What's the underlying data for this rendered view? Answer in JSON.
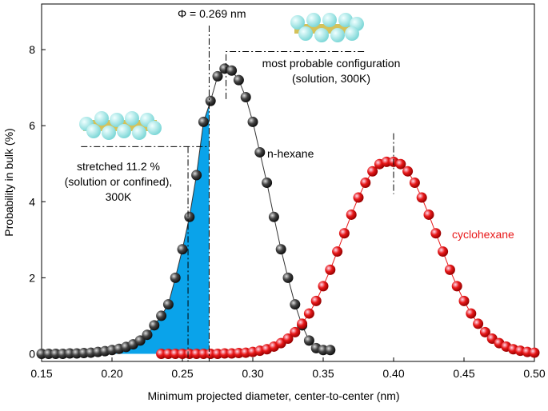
{
  "chart_data": {
    "type": "scatter-line",
    "x_label": "Minimum projected diameter, center-to-center (nm)",
    "y_label": "Probability in bulk (%)",
    "xlim": [
      0.15,
      0.5
    ],
    "ylim": [
      -0.2,
      9.2
    ],
    "xticks": [
      0.15,
      {
        "value": 0.2,
        "label": "0.20"
      },
      0.25,
      {
        "value": 0.3,
        "label": "0.30"
      },
      0.35,
      {
        "value": 0.4,
        "label": "0.40"
      },
      0.45,
      {
        "value": 0.5,
        "label": "0.50"
      }
    ],
    "yticks": [
      0,
      2,
      4,
      6,
      8
    ],
    "series": [
      {
        "name": "n-hexane",
        "color": "#333333",
        "label_color": "#000000",
        "x": [
          0.15,
          0.155,
          0.16,
          0.165,
          0.17,
          0.175,
          0.18,
          0.185,
          0.19,
          0.195,
          0.2,
          0.205,
          0.21,
          0.215,
          0.22,
          0.225,
          0.23,
          0.235,
          0.24,
          0.245,
          0.25,
          0.255,
          0.26,
          0.265,
          0.27,
          0.275,
          0.28,
          0.285,
          0.29,
          0.295,
          0.3,
          0.305,
          0.31,
          0.315,
          0.32,
          0.325,
          0.33,
          0.335,
          0.34,
          0.345,
          0.35,
          0.355
        ],
        "values": [
          0,
          0,
          0,
          0,
          0.01,
          0.01,
          0.02,
          0.03,
          0.05,
          0.07,
          0.1,
          0.13,
          0.18,
          0.25,
          0.35,
          0.5,
          0.75,
          1.0,
          1.3,
          2.0,
          2.75,
          3.6,
          4.7,
          6.1,
          6.65,
          7.3,
          7.5,
          7.45,
          7.2,
          6.75,
          6.1,
          5.3,
          4.5,
          3.6,
          2.75,
          2.0,
          1.3,
          0.75,
          0.35,
          0.15,
          0.1,
          0.1
        ]
      },
      {
        "name": "cyclohexane",
        "color": "#e8191a",
        "label_color": "#e8191a",
        "x": [
          0.235,
          0.24,
          0.245,
          0.25,
          0.255,
          0.26,
          0.265,
          0.27,
          0.275,
          0.28,
          0.285,
          0.29,
          0.295,
          0.3,
          0.305,
          0.31,
          0.315,
          0.32,
          0.325,
          0.33,
          0.335,
          0.34,
          0.345,
          0.35,
          0.355,
          0.36,
          0.365,
          0.37,
          0.375,
          0.38,
          0.385,
          0.39,
          0.395,
          0.4,
          0.405,
          0.41,
          0.415,
          0.42,
          0.425,
          0.43,
          0.435,
          0.44,
          0.445,
          0.45,
          0.455,
          0.46,
          0.465,
          0.47,
          0.475,
          0.48,
          0.485,
          0.49,
          0.495,
          0.5
        ],
        "values": [
          0,
          0,
          0,
          0,
          0,
          0,
          0,
          0,
          0,
          0.01,
          0.01,
          0.02,
          0.03,
          0.05,
          0.08,
          0.12,
          0.19,
          0.28,
          0.4,
          0.57,
          0.79,
          1.06,
          1.39,
          1.78,
          2.21,
          2.69,
          3.17,
          3.66,
          4.11,
          4.5,
          4.8,
          4.99,
          5.05,
          5.05,
          4.99,
          4.8,
          4.5,
          4.11,
          3.66,
          3.17,
          2.69,
          2.21,
          1.78,
          1.39,
          1.06,
          0.79,
          0.57,
          0.4,
          0.28,
          0.19,
          0.12,
          0.08,
          0.05,
          0.03
        ]
      }
    ],
    "shade_color": "#0aa3ea",
    "phi_label": "Φ = 0.269 nm",
    "phi": 0.269,
    "most_probable_label": [
      "most probable configuration",
      "(solution, 300K)"
    ],
    "most_probable_x": 0.281,
    "stretched_label": [
      "stretched 11.2 %",
      "(solution or confined),",
      "300K"
    ],
    "stretched_x": 0.254,
    "stretched_y": 5.45,
    "cyclo_peak_x": 0.4
  }
}
